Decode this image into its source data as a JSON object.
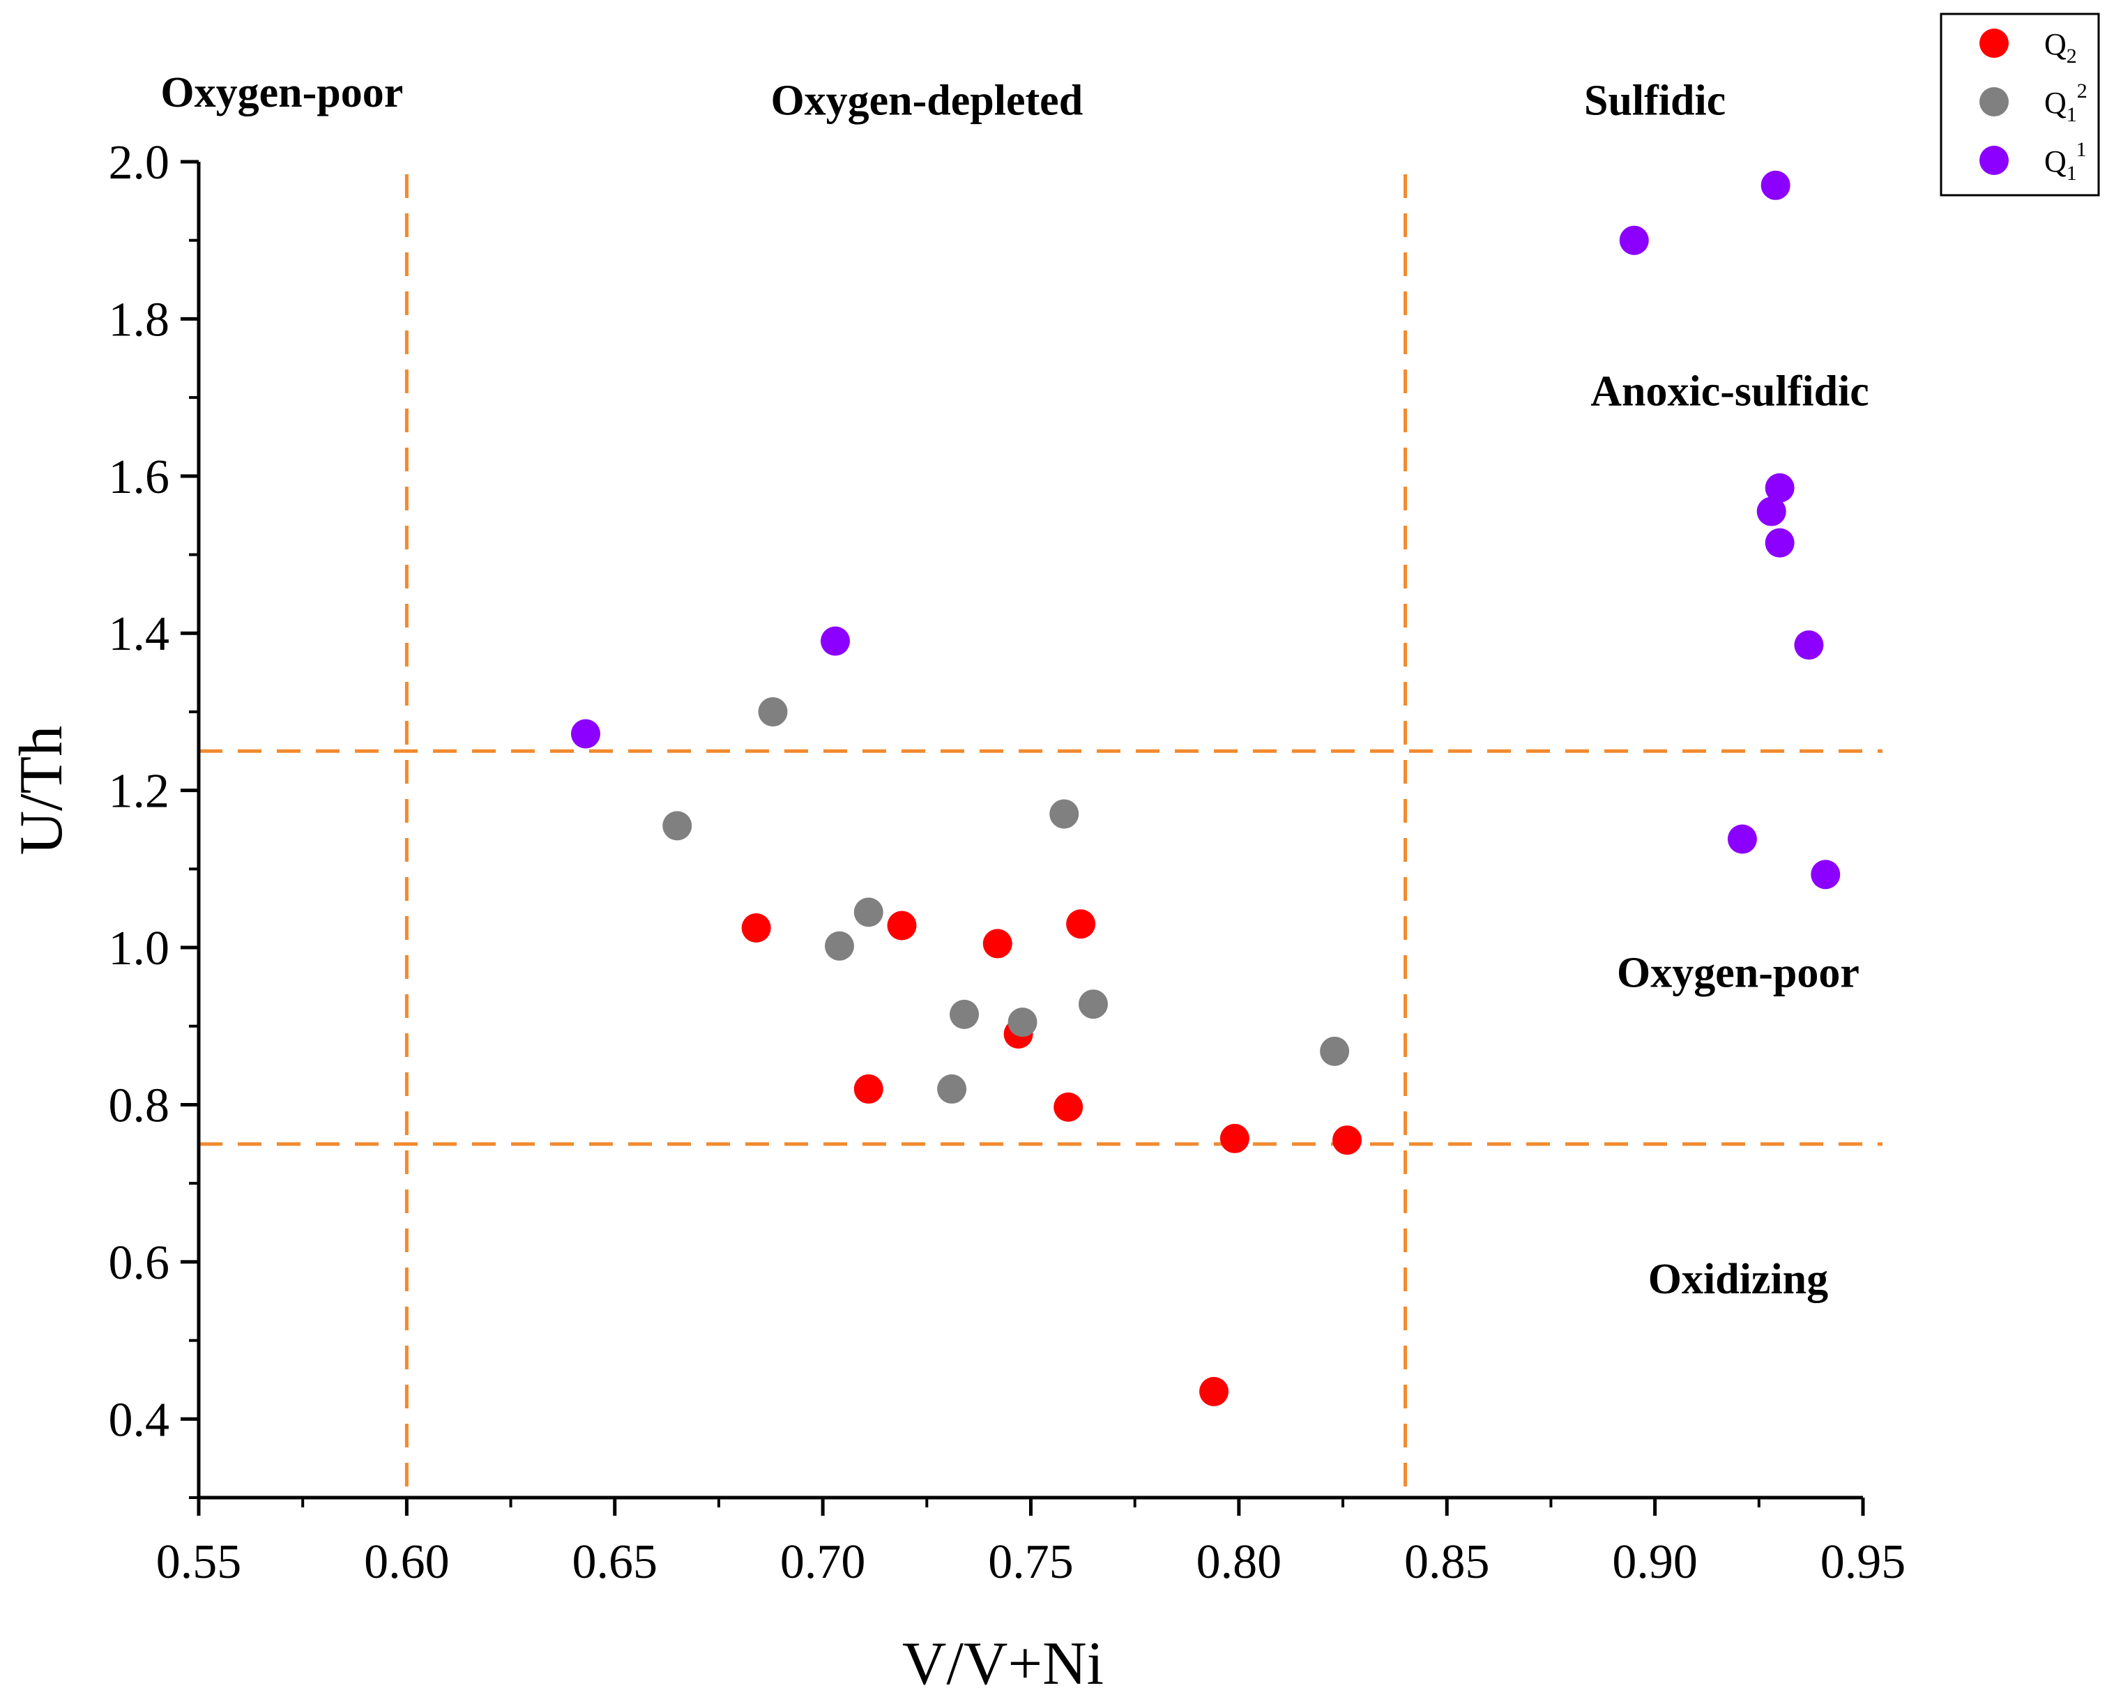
{
  "chart_data": {
    "type": "scatter",
    "xlabel": "V/V+Ni",
    "ylabel": "U/Th",
    "xlim": [
      0.55,
      0.95
    ],
    "ylim": [
      0.3,
      2.0
    ],
    "x_ticks": [
      0.55,
      0.6,
      0.65,
      0.7,
      0.75,
      0.8,
      0.85,
      0.9,
      0.95
    ],
    "x_tick_labels": [
      "0.55",
      "0.60",
      "0.65",
      "0.70",
      "0.75",
      "0.80",
      "0.85",
      "0.90",
      "0.95"
    ],
    "y_ticks": [
      0.4,
      0.6,
      0.8,
      1.0,
      1.2,
      1.4,
      1.6,
      1.8,
      2.0
    ],
    "y_tick_labels": [
      "0.4",
      "0.6",
      "0.8",
      "1.0",
      "1.2",
      "1.4",
      "1.6",
      "1.8",
      "2.0"
    ],
    "reference_lines": {
      "vertical": [
        0.6,
        0.84
      ],
      "horizontal": [
        0.75,
        1.25
      ],
      "color": "#f28a2e"
    },
    "annotations": [
      {
        "text": "Oxygen-poor",
        "x": 0.57,
        "y": 2.07
      },
      {
        "text": "Oxygen-depleted",
        "x": 0.725,
        "y": 2.06
      },
      {
        "text": "Sulfidic",
        "x": 0.9,
        "y": 2.06
      },
      {
        "text": "Anoxic-sulfidic",
        "x": 0.918,
        "y": 1.69
      },
      {
        "text": "Oxygen-poor",
        "x": 0.92,
        "y": 0.95
      },
      {
        "text": "Oxidizing",
        "x": 0.92,
        "y": 0.56
      }
    ],
    "legend": {
      "position": "top-right"
    },
    "series": [
      {
        "name": "Q2",
        "label_base": "Q",
        "label_sub": "2",
        "label_sup": "",
        "color": "#ff0000",
        "points": [
          [
            0.684,
            1.025
          ],
          [
            0.711,
            0.82
          ],
          [
            0.719,
            1.028
          ],
          [
            0.742,
            1.005
          ],
          [
            0.747,
            0.89
          ],
          [
            0.759,
            0.797
          ],
          [
            0.762,
            1.03
          ],
          [
            0.794,
            0.435
          ],
          [
            0.799,
            0.757
          ],
          [
            0.826,
            0.755
          ]
        ]
      },
      {
        "name": "Q1^2",
        "label_base": "Q",
        "label_sub": "1",
        "label_sup": "2",
        "color": "#808080",
        "points": [
          [
            0.665,
            1.155
          ],
          [
            0.688,
            1.3
          ],
          [
            0.704,
            1.002
          ],
          [
            0.711,
            1.045
          ],
          [
            0.731,
            0.82
          ],
          [
            0.734,
            0.915
          ],
          [
            0.748,
            0.905
          ],
          [
            0.758,
            1.17
          ],
          [
            0.765,
            0.928
          ],
          [
            0.823,
            0.868
          ]
        ]
      },
      {
        "name": "Q1^1",
        "label_base": "Q",
        "label_sub": "1",
        "label_sup": "1",
        "color": "#8b00ff",
        "points": [
          [
            0.643,
            1.272
          ],
          [
            0.703,
            1.39
          ],
          [
            0.895,
            1.9
          ],
          [
            0.921,
            1.138
          ],
          [
            0.928,
            1.555
          ],
          [
            0.929,
            1.97
          ],
          [
            0.93,
            1.585
          ],
          [
            0.93,
            1.515
          ],
          [
            0.937,
            1.385
          ],
          [
            0.941,
            1.093
          ]
        ]
      }
    ]
  }
}
